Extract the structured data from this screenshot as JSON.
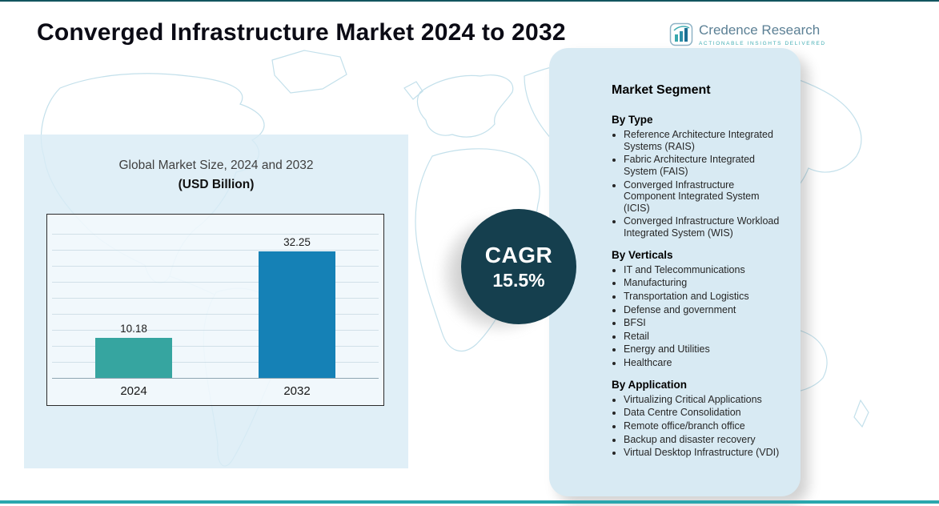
{
  "header": {
    "title": "Converged Infrastructure Market 2024 to 2032"
  },
  "logo": {
    "name": "Credence Research",
    "tagline": "Actionable Insights Delivered"
  },
  "chart_data": {
    "type": "bar",
    "title": "Global Market Size, 2024 and 2032",
    "subtitle": "(USD Billion)",
    "categories": [
      "2024",
      "2032"
    ],
    "values": [
      10.18,
      32.25
    ],
    "bar_colors": [
      "#36a5a0",
      "#1581b6"
    ],
    "ylim": [
      0,
      40
    ],
    "grid": true,
    "legend": false
  },
  "cagr": {
    "label": "CAGR",
    "value": "15.5%"
  },
  "segments": {
    "heading": "Market Segment",
    "groups": [
      {
        "title": "By Type",
        "items": [
          "Reference Architecture Integrated Systems (RAIS)",
          "Fabric Architecture Integrated System (FAIS)",
          "Converged Infrastructure Component Integrated System (ICIS)",
          "Converged Infrastructure Workload Integrated System (WIS)"
        ]
      },
      {
        "title": "By Verticals",
        "items": [
          "IT and Telecommunications",
          "Manufacturing",
          "Transportation and Logistics",
          "Defense and government",
          "BFSI",
          "Retail",
          "Energy and Utilities",
          "Healthcare"
        ]
      },
      {
        "title": "By Application",
        "items": [
          "Virtualizing Critical Applications",
          "Data Centre Consolidation",
          "Remote office/branch office",
          "Backup and disaster recovery",
          "Virtual Desktop Infrastructure (VDI)"
        ]
      }
    ]
  },
  "theme": {
    "accent_teal": "#2ba6ad",
    "dark_circle": "#153f4e",
    "panel_blue": "#d8eaf3",
    "map_line": "#c3e0eb"
  }
}
